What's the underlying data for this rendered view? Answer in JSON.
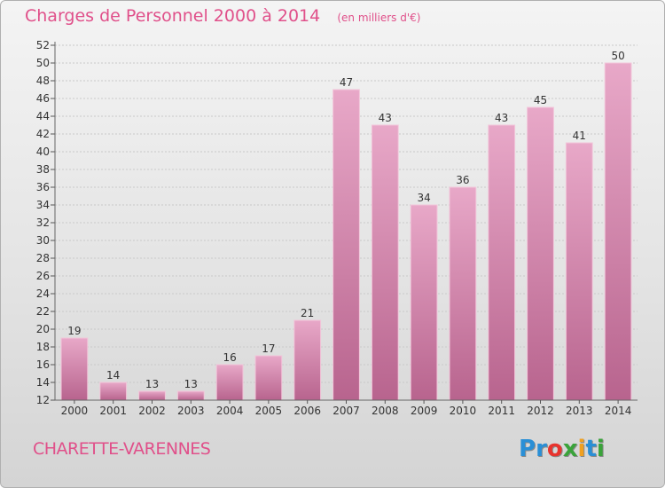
{
  "header": {
    "title": "Charges de Personnel 2000 à 2014",
    "subtitle": "(en milliers d'€)"
  },
  "footer": {
    "commune": "CHARETTE-VARENNES",
    "logo_letters": [
      "P",
      "r",
      "o",
      "x",
      "i",
      "t",
      "i"
    ],
    "logo_colors": [
      "#2a8fd6",
      "#2a8fd6",
      "#e8342e",
      "#3aa33a",
      "#f0a020",
      "#2a8fd6",
      "#3aa33a"
    ]
  },
  "chart_data": {
    "type": "bar",
    "title": "Charges de Personnel 2000 à 2014",
    "subtitle": "(en milliers d'€)",
    "categories": [
      "2000",
      "2001",
      "2002",
      "2003",
      "2004",
      "2005",
      "2006",
      "2007",
      "2008",
      "2009",
      "2010",
      "2011",
      "2012",
      "2013",
      "2014"
    ],
    "values": [
      19,
      14,
      13,
      13,
      16,
      17,
      21,
      47,
      43,
      34,
      36,
      43,
      45,
      41,
      50
    ],
    "ylim": [
      12,
      52
    ],
    "yticks": [
      12,
      14,
      16,
      18,
      20,
      22,
      24,
      26,
      28,
      30,
      32,
      34,
      36,
      38,
      40,
      42,
      44,
      46,
      48,
      50,
      52
    ],
    "grid": true,
    "bar_color": "#d9769f",
    "data_labels": true
  }
}
